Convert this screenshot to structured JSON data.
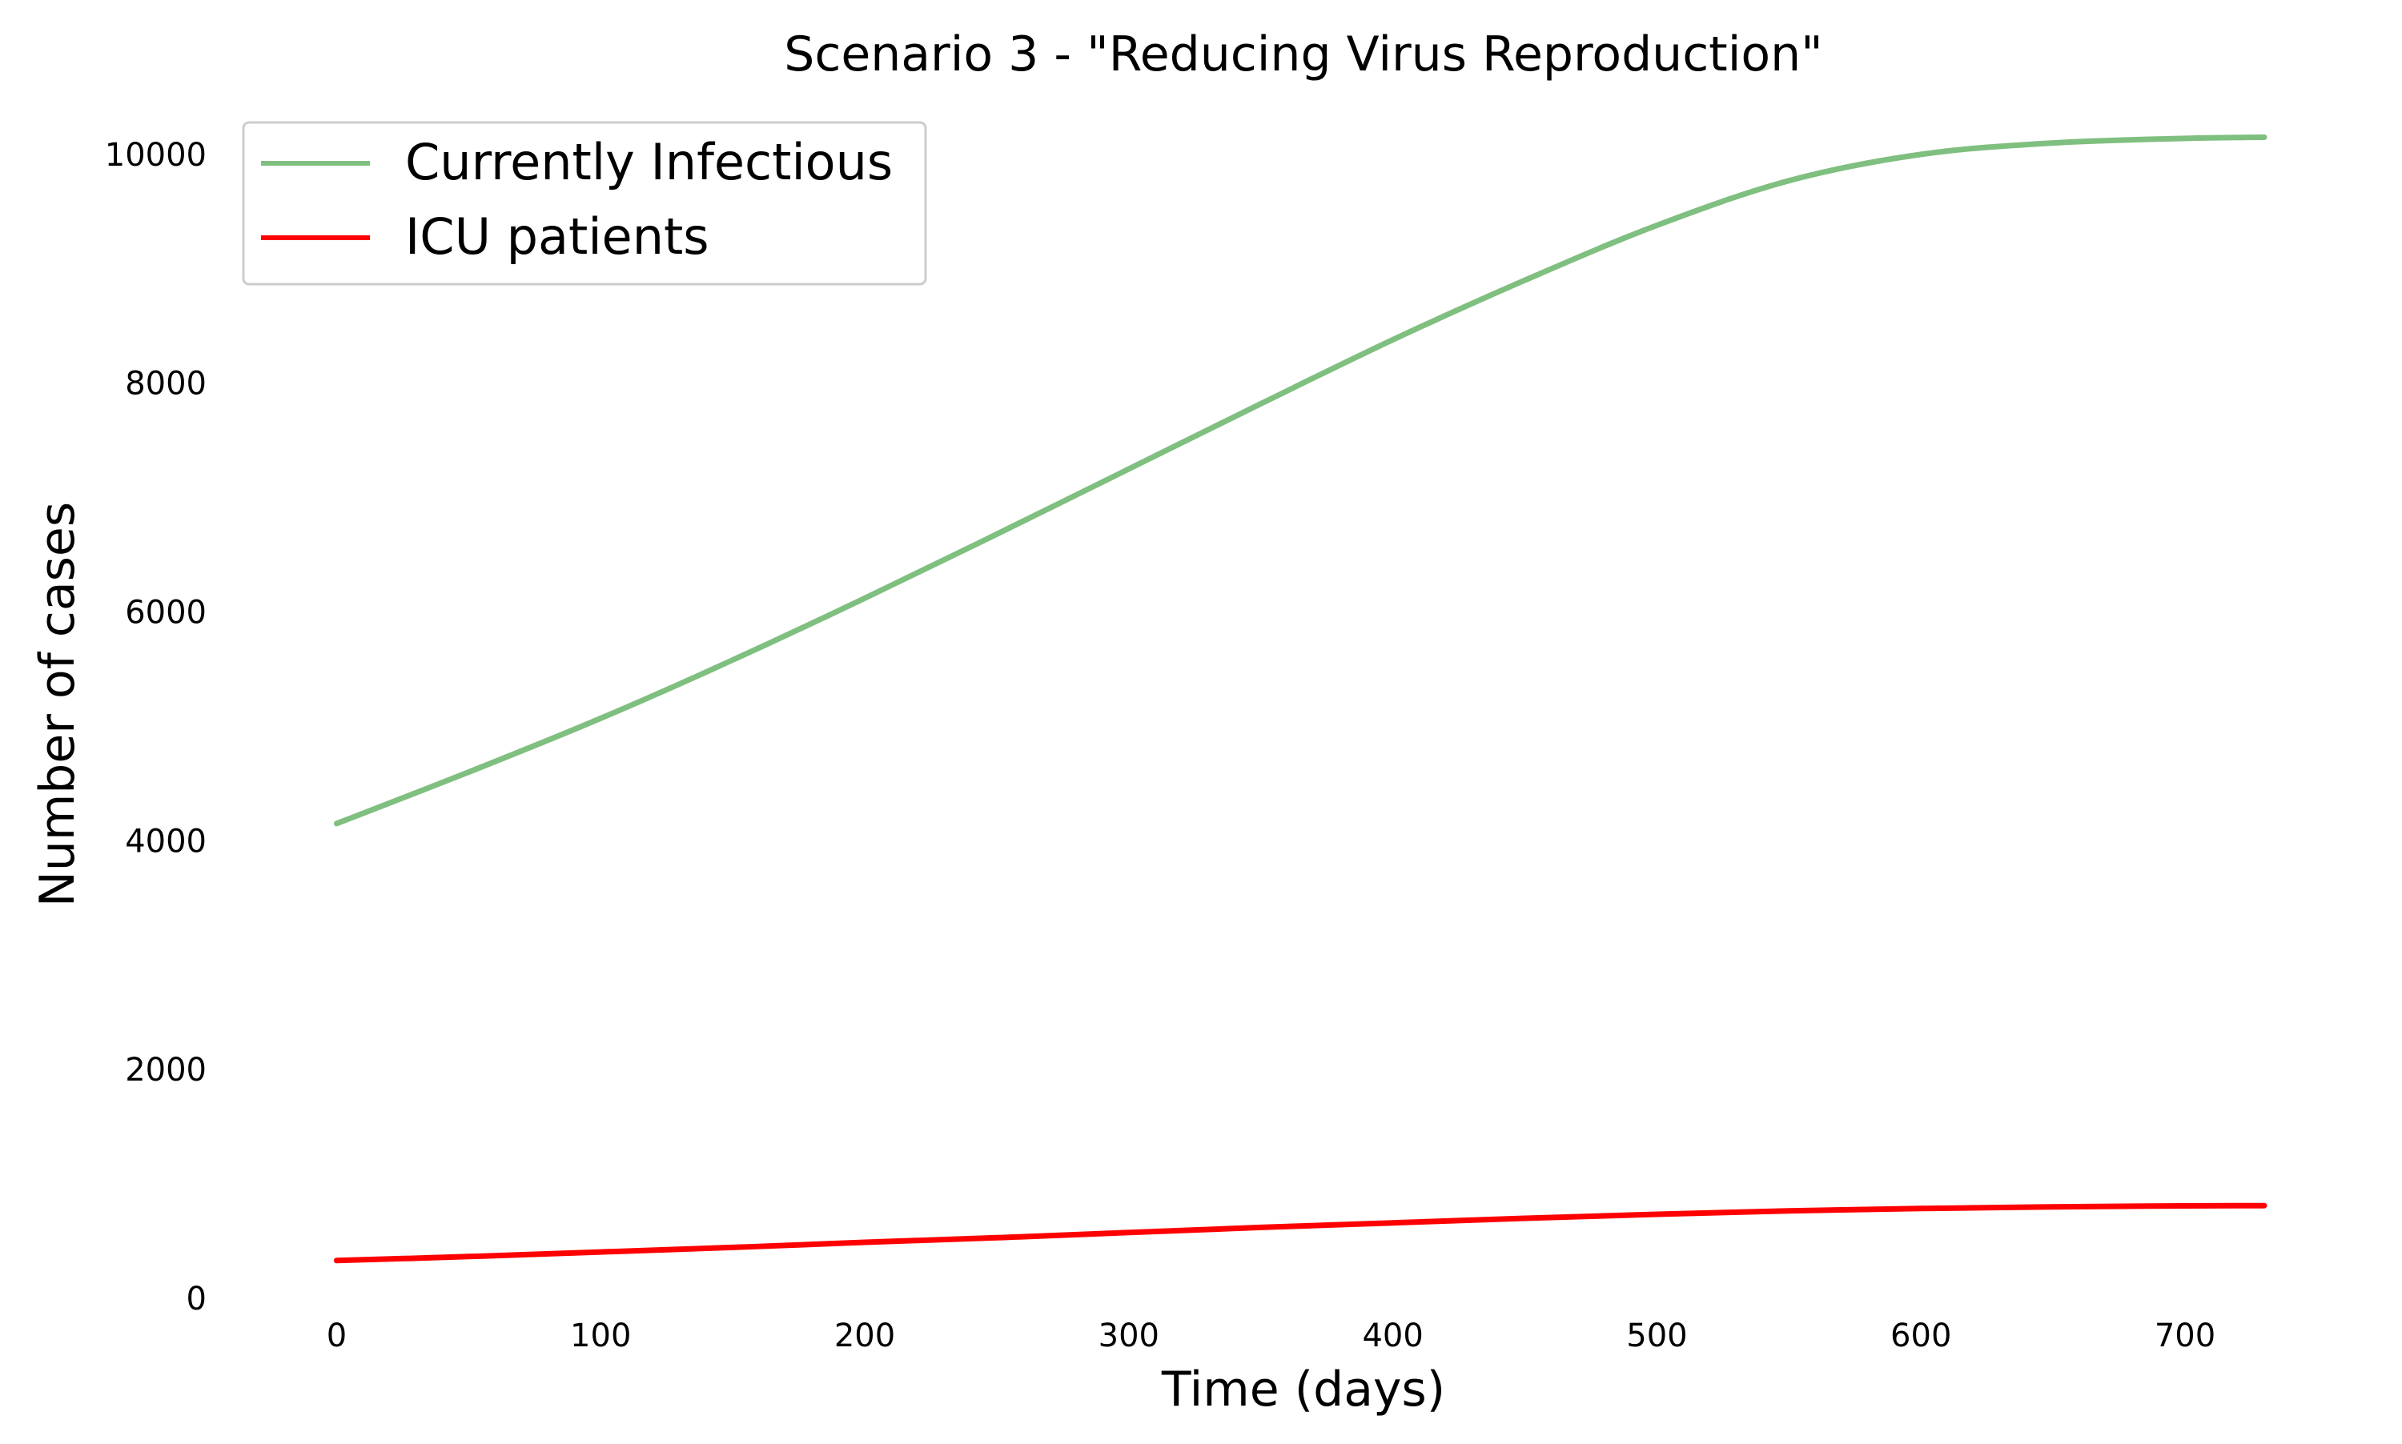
{
  "chart_data": {
    "type": "line",
    "title": "Scenario 3 - \"Reducing Virus Reproduction\"",
    "xlabel": "Time (days)",
    "ylabel": "Number of cases",
    "xlim": [
      -35,
      767
    ],
    "ylim": [
      0,
      10300
    ],
    "xticks": [
      0,
      100,
      200,
      300,
      400,
      500,
      600,
      700
    ],
    "yticks": [
      0,
      2000,
      4000,
      6000,
      8000,
      10000
    ],
    "grid": false,
    "legend_position": "upper left",
    "series": [
      {
        "name": "Currently Infectious",
        "color": "#7fbf7f",
        "x": [
          0,
          50,
          100,
          150,
          200,
          250,
          300,
          350,
          400,
          450,
          500,
          550,
          600,
          650,
          700,
          730
        ],
        "y": [
          4150,
          4600,
          5070,
          5580,
          6120,
          6680,
          7250,
          7820,
          8380,
          8900,
          9380,
          9770,
          10000,
          10100,
          10140,
          10150
        ]
      },
      {
        "name": "ICU patients",
        "color": "#ff0000",
        "x": [
          0,
          50,
          100,
          150,
          200,
          250,
          300,
          350,
          400,
          450,
          500,
          550,
          600,
          650,
          700,
          730
        ],
        "y": [
          330,
          365,
          405,
          445,
          490,
          530,
          575,
          620,
          660,
          700,
          735,
          765,
          785,
          800,
          808,
          810
        ]
      }
    ]
  }
}
